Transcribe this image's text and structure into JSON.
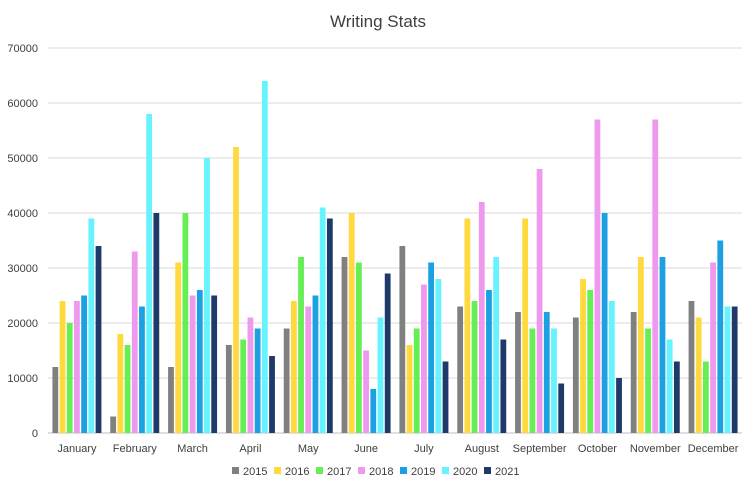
{
  "chart_data": {
    "type": "bar",
    "title": "Writing Stats",
    "xlabel": "",
    "ylabel": "",
    "ylim": [
      0,
      70000
    ],
    "yticks": [
      0,
      10000,
      20000,
      30000,
      40000,
      50000,
      60000,
      70000
    ],
    "grid": true,
    "legend_position": "bottom",
    "categories": [
      "January",
      "February",
      "March",
      "April",
      "May",
      "June",
      "July",
      "August",
      "September",
      "October",
      "November",
      "December"
    ],
    "series": [
      {
        "name": "2015",
        "color": "#808080",
        "values": [
          12000,
          3000,
          12000,
          16000,
          19000,
          32000,
          34000,
          23000,
          22000,
          21000,
          22000,
          24000
        ]
      },
      {
        "name": "2016",
        "color": "#FFD93D",
        "values": [
          24000,
          18000,
          31000,
          52000,
          24000,
          40000,
          16000,
          39000,
          39000,
          28000,
          32000,
          21000
        ]
      },
      {
        "name": "2017",
        "color": "#66EE55",
        "values": [
          20000,
          16000,
          40000,
          17000,
          32000,
          31000,
          19000,
          24000,
          19000,
          26000,
          19000,
          13000
        ]
      },
      {
        "name": "2018",
        "color": "#EE99EE",
        "values": [
          24000,
          33000,
          25000,
          21000,
          23000,
          15000,
          27000,
          42000,
          48000,
          57000,
          57000,
          31000
        ]
      },
      {
        "name": "2019",
        "color": "#1BA1E2",
        "values": [
          25000,
          23000,
          26000,
          19000,
          25000,
          8000,
          31000,
          26000,
          22000,
          40000,
          32000,
          35000
        ]
      },
      {
        "name": "2020",
        "color": "#66F2FF",
        "values": [
          39000,
          58000,
          50000,
          64000,
          41000,
          21000,
          28000,
          32000,
          19000,
          24000,
          17000,
          23000
        ]
      },
      {
        "name": "2021",
        "color": "#1F3A68",
        "values": [
          34000,
          40000,
          25000,
          14000,
          39000,
          29000,
          13000,
          17000,
          9000,
          10000,
          13000,
          23000
        ]
      }
    ]
  }
}
